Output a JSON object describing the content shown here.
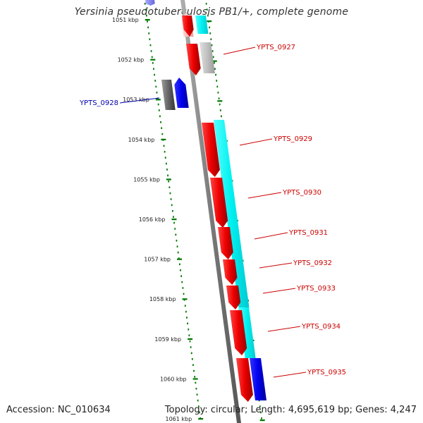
{
  "title": "Yersinia pseudotuberculosis PB1/+, complete genome",
  "footer": {
    "accession": "Accession: NC_010634",
    "stats": "Topology: circular; Length: 4,695,619 bp; Genes: 4,247"
  },
  "colors": {
    "forward_gene": "#ff0000",
    "highlight_gene": "#0000ff",
    "cyan_gene": "#00ffff",
    "label_red": "#cc0000",
    "label_blue": "#0000aa",
    "tick": "#007700",
    "backbone": "#888888"
  },
  "ruler": {
    "unit": "kbp",
    "labels": [
      "1051 kbp",
      "1052 kbp",
      "1053 kbp",
      "1054 kbp",
      "1055 kbp",
      "1056 kbp",
      "1057 kbp",
      "1058 kbp",
      "1059 kbp",
      "1060 kbp",
      "1061 kbp"
    ]
  },
  "gene_labels": [
    {
      "text": "YPTS_0927",
      "color": "red"
    },
    {
      "text": "YPTS_0928",
      "color": "blue"
    },
    {
      "text": "YPTS_0929",
      "color": "red"
    },
    {
      "text": "YPTS_0930",
      "color": "red"
    },
    {
      "text": "YPTS_0931",
      "color": "red"
    },
    {
      "text": "YPTS_0932",
      "color": "red"
    },
    {
      "text": "YPTS_0933",
      "color": "red"
    },
    {
      "text": "YPTS_0934",
      "color": "red"
    },
    {
      "text": "YPTS_0935",
      "color": "red"
    }
  ]
}
